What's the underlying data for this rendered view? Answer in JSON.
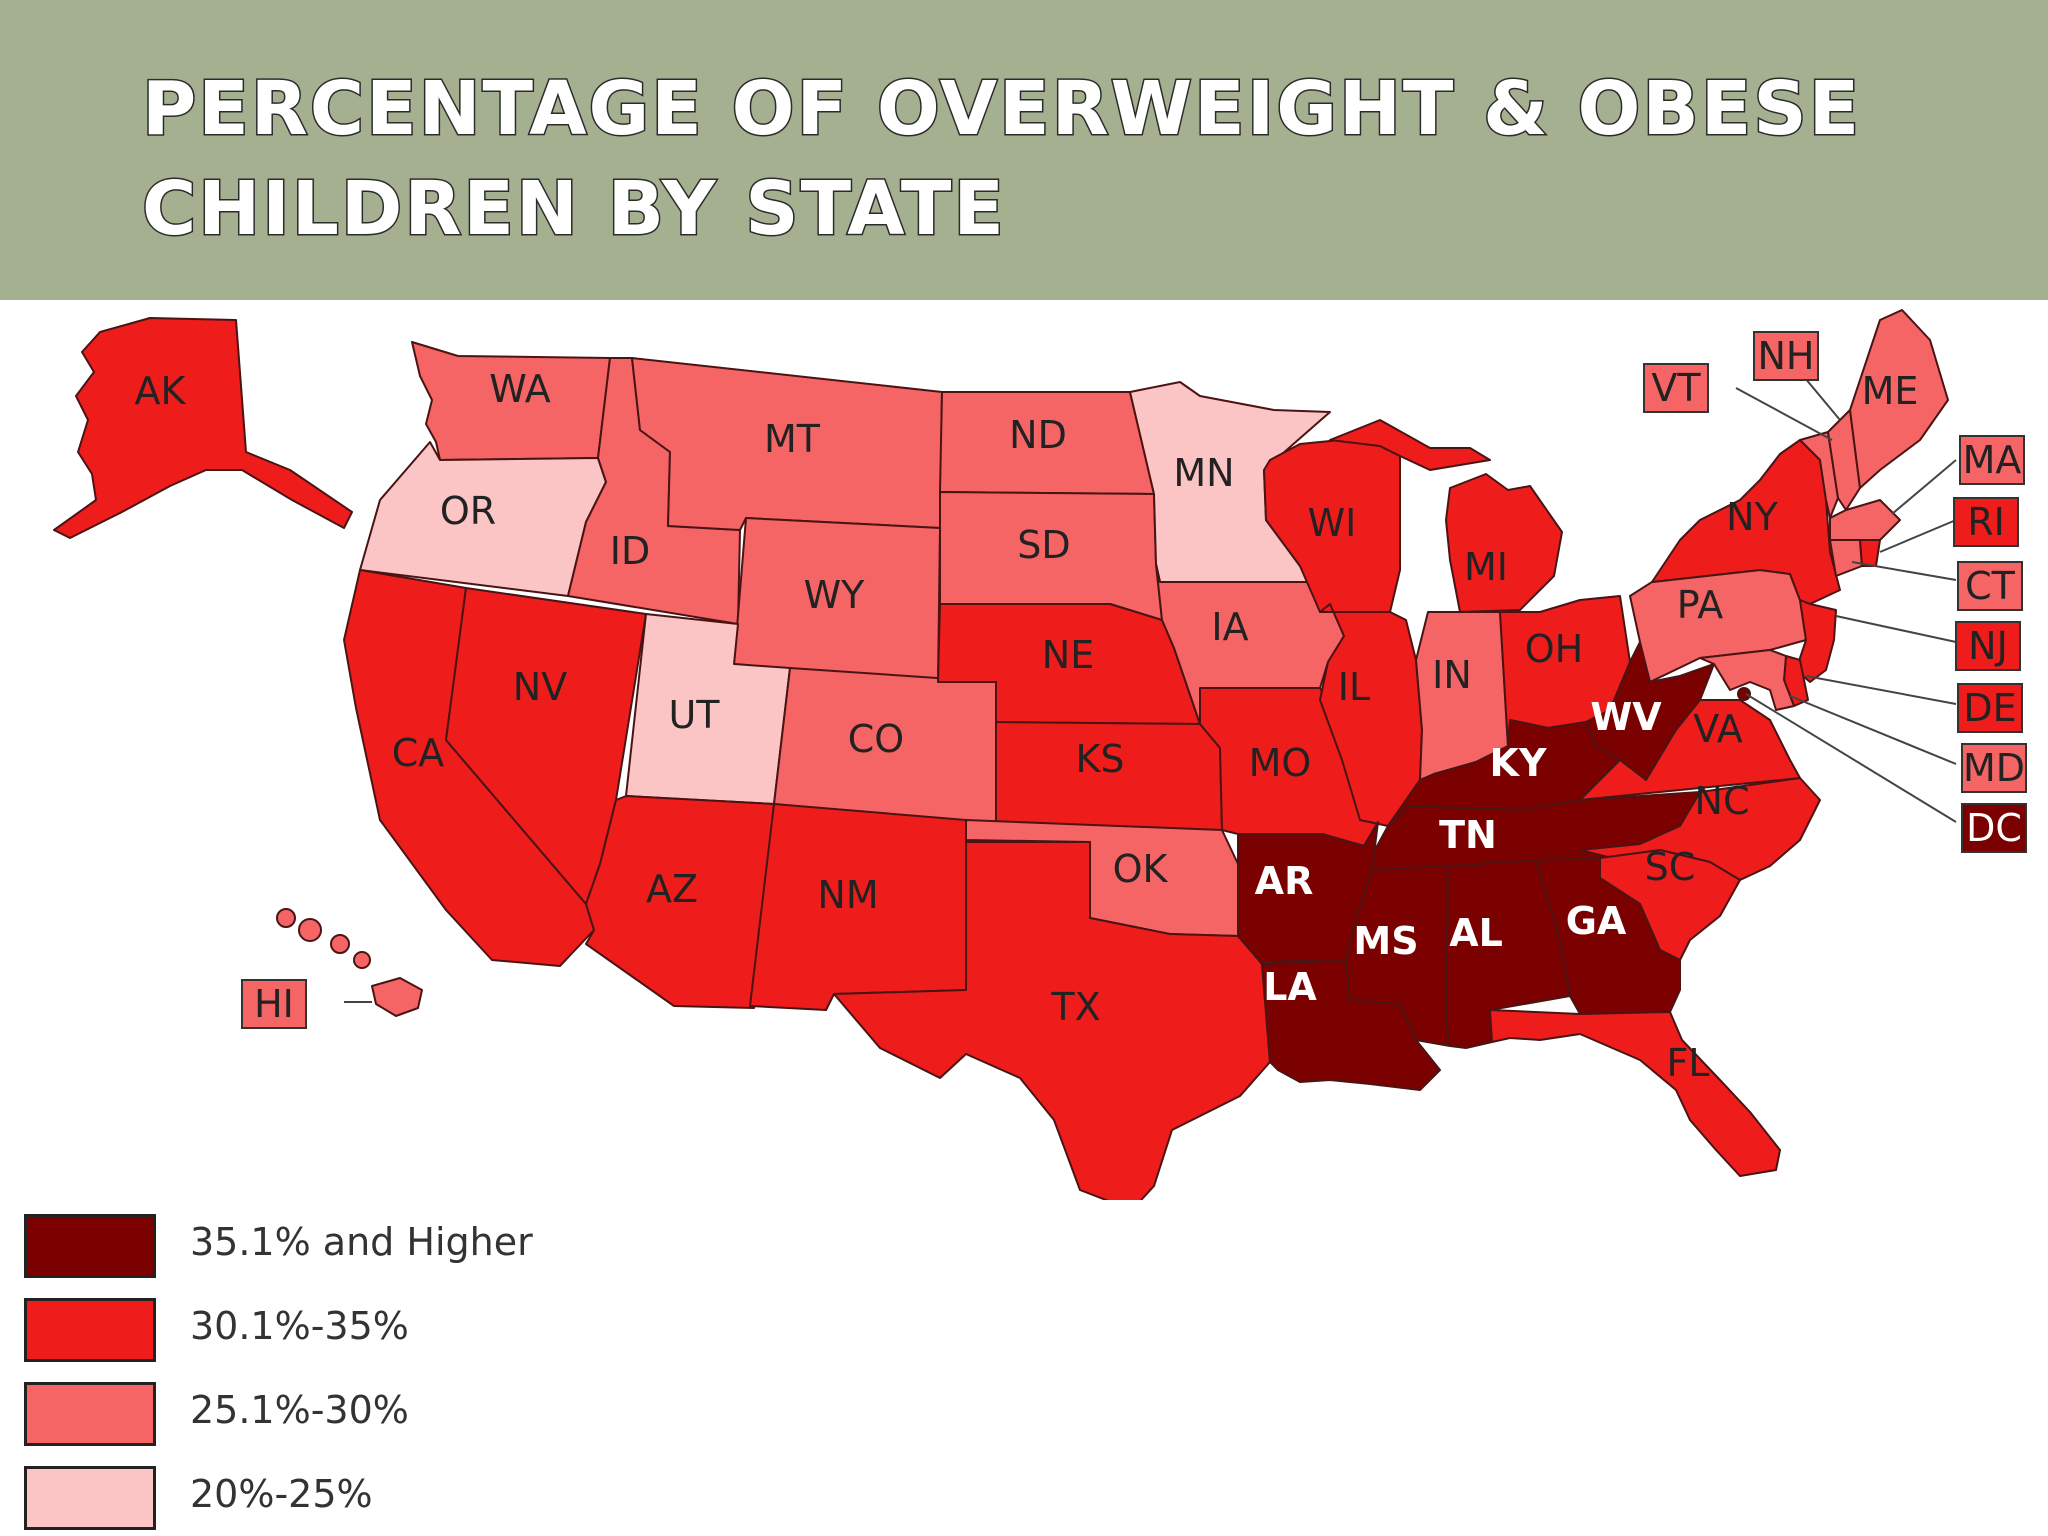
{
  "title": {
    "line1": "PERCENTAGE OF OVERWEIGHT & OBESE",
    "line2": "CHILDREN BY STATE"
  },
  "colors": {
    "header_bg": "#a5b090",
    "dark": "#7b0000",
    "red": "#ef1c1c",
    "mid": "#f56565",
    "light": "#fcc5c5"
  },
  "legend": [
    {
      "label": "35.1% and Higher",
      "tier": "dark",
      "color": "#7b0000"
    },
    {
      "label": "30.1%-35%",
      "tier": "red",
      "color": "#ef1c1c"
    },
    {
      "label": "25.1%-30%",
      "tier": "mid",
      "color": "#f56565"
    },
    {
      "label": "20%-25%",
      "tier": "light",
      "color": "#fcc5c5"
    }
  ],
  "states": {
    "AK": {
      "abbr": "AK",
      "tier": "red"
    },
    "HI": {
      "abbr": "HI",
      "tier": "mid"
    },
    "WA": {
      "abbr": "WA",
      "tier": "mid"
    },
    "OR": {
      "abbr": "OR",
      "tier": "light"
    },
    "CA": {
      "abbr": "CA",
      "tier": "red"
    },
    "ID": {
      "abbr": "ID",
      "tier": "mid"
    },
    "NV": {
      "abbr": "NV",
      "tier": "red"
    },
    "MT": {
      "abbr": "MT",
      "tier": "mid"
    },
    "WY": {
      "abbr": "WY",
      "tier": "mid"
    },
    "UT": {
      "abbr": "UT",
      "tier": "light"
    },
    "AZ": {
      "abbr": "AZ",
      "tier": "red"
    },
    "CO": {
      "abbr": "CO",
      "tier": "mid"
    },
    "NM": {
      "abbr": "NM",
      "tier": "red"
    },
    "ND": {
      "abbr": "ND",
      "tier": "mid"
    },
    "SD": {
      "abbr": "SD",
      "tier": "mid"
    },
    "NE": {
      "abbr": "NE",
      "tier": "red"
    },
    "KS": {
      "abbr": "KS",
      "tier": "red"
    },
    "OK": {
      "abbr": "OK",
      "tier": "mid"
    },
    "TX": {
      "abbr": "TX",
      "tier": "red"
    },
    "MN": {
      "abbr": "MN",
      "tier": "light"
    },
    "IA": {
      "abbr": "IA",
      "tier": "mid"
    },
    "MO": {
      "abbr": "MO",
      "tier": "red"
    },
    "AR": {
      "abbr": "AR",
      "tier": "dark"
    },
    "LA": {
      "abbr": "LA",
      "tier": "dark"
    },
    "WI": {
      "abbr": "WI",
      "tier": "red"
    },
    "IL": {
      "abbr": "IL",
      "tier": "red"
    },
    "MI": {
      "abbr": "MI",
      "tier": "red"
    },
    "IN": {
      "abbr": "IN",
      "tier": "mid"
    },
    "OH": {
      "abbr": "OH",
      "tier": "red"
    },
    "KY": {
      "abbr": "KY",
      "tier": "dark"
    },
    "TN": {
      "abbr": "TN",
      "tier": "dark"
    },
    "MS": {
      "abbr": "MS",
      "tier": "dark"
    },
    "AL": {
      "abbr": "AL",
      "tier": "dark"
    },
    "GA": {
      "abbr": "GA",
      "tier": "dark"
    },
    "FL": {
      "abbr": "FL",
      "tier": "red"
    },
    "SC": {
      "abbr": "SC",
      "tier": "red"
    },
    "NC": {
      "abbr": "NC",
      "tier": "red"
    },
    "VA": {
      "abbr": "VA",
      "tier": "red"
    },
    "WV": {
      "abbr": "WV",
      "tier": "dark"
    },
    "PA": {
      "abbr": "PA",
      "tier": "mid"
    },
    "NY": {
      "abbr": "NY",
      "tier": "red"
    },
    "ME": {
      "abbr": "ME",
      "tier": "mid"
    },
    "VT": {
      "abbr": "VT",
      "tier": "mid"
    },
    "NH": {
      "abbr": "NH",
      "tier": "mid"
    },
    "MA": {
      "abbr": "MA",
      "tier": "mid"
    },
    "RI": {
      "abbr": "RI",
      "tier": "red"
    },
    "CT": {
      "abbr": "CT",
      "tier": "mid"
    },
    "NJ": {
      "abbr": "NJ",
      "tier": "red"
    },
    "DE": {
      "abbr": "DE",
      "tier": "red"
    },
    "MD": {
      "abbr": "MD",
      "tier": "mid"
    },
    "DC": {
      "abbr": "DC",
      "tier": "dark"
    }
  }
}
